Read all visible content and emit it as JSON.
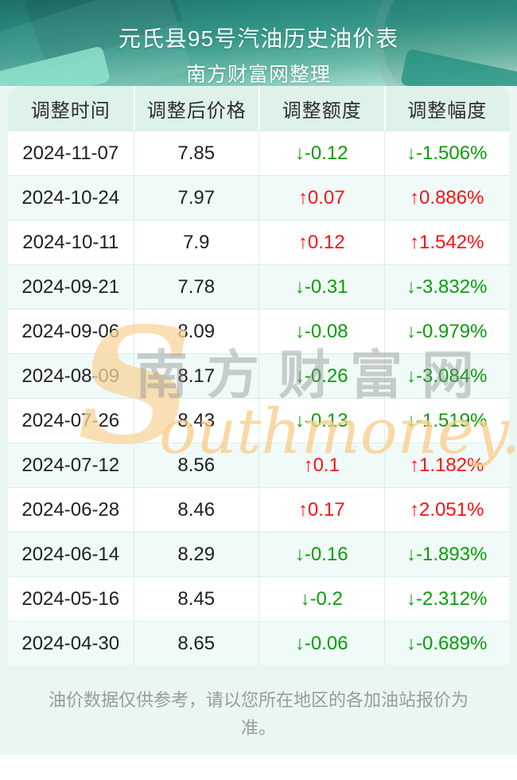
{
  "header": {
    "title": "元氏县95号汽油历史油价表",
    "subtitle": "南方财富网整理"
  },
  "table": {
    "columns": [
      "调整时间",
      "调整后价格",
      "调整额度",
      "调整幅度"
    ],
    "rows": [
      {
        "date": "2024-11-07",
        "price": "7.85",
        "change": "↓-0.12",
        "pct": "↓-1.506%",
        "dir": "down"
      },
      {
        "date": "2024-10-24",
        "price": "7.97",
        "change": "↑0.07",
        "pct": "↑0.886%",
        "dir": "up"
      },
      {
        "date": "2024-10-11",
        "price": "7.9",
        "change": "↑0.12",
        "pct": "↑1.542%",
        "dir": "up"
      },
      {
        "date": "2024-09-21",
        "price": "7.78",
        "change": "↓-0.31",
        "pct": "↓-3.832%",
        "dir": "down"
      },
      {
        "date": "2024-09-06",
        "price": "8.09",
        "change": "↓-0.08",
        "pct": "↓-0.979%",
        "dir": "down"
      },
      {
        "date": "2024-08-09",
        "price": "8.17",
        "change": "↓-0.26",
        "pct": "↓-3.084%",
        "dir": "down"
      },
      {
        "date": "2024-07-26",
        "price": "8.43",
        "change": "↓-0.13",
        "pct": "↓-1.519%",
        "dir": "down"
      },
      {
        "date": "2024-07-12",
        "price": "8.56",
        "change": "↑0.1",
        "pct": "↑1.182%",
        "dir": "up"
      },
      {
        "date": "2024-06-28",
        "price": "8.46",
        "change": "↑0.17",
        "pct": "↑2.051%",
        "dir": "up"
      },
      {
        "date": "2024-06-14",
        "price": "8.29",
        "change": "↓-0.16",
        "pct": "↓-1.893%",
        "dir": "down"
      },
      {
        "date": "2024-05-16",
        "price": "8.45",
        "change": "↓-0.2",
        "pct": "↓-2.312%",
        "dir": "down"
      },
      {
        "date": "2024-04-30",
        "price": "8.65",
        "change": "↓-0.06",
        "pct": "↓-0.689%",
        "dir": "down"
      }
    ]
  },
  "watermark": {
    "en_initial": "S",
    "cn": "南方财富网",
    "en_rest": "outhmoney.com"
  },
  "footer": {
    "disclaimer": "油价数据仅供参考，请以您所在地区的各加油站报价为准。"
  },
  "colors": {
    "up": "#fb1111",
    "down": "#089e08",
    "hero_top": "#1e6f65",
    "hero_bottom": "#c9ebe1",
    "page_bg": "#e9f6f2",
    "header_row_bg": "#def2ea",
    "alt_row_bg": "#f0faf8",
    "border": "#d8efe8"
  },
  "chart_data": {
    "type": "table",
    "title": "元氏县95号汽油历史油价表",
    "subtitle": "南方财富网整理",
    "columns": [
      "调整时间",
      "调整后价格",
      "调整额度",
      "调整幅度"
    ],
    "rows": [
      [
        "2024-11-07",
        7.85,
        -0.12,
        "-1.506%"
      ],
      [
        "2024-10-24",
        7.97,
        0.07,
        "0.886%"
      ],
      [
        "2024-10-11",
        7.9,
        0.12,
        "1.542%"
      ],
      [
        "2024-09-21",
        7.78,
        -0.31,
        "-3.832%"
      ],
      [
        "2024-09-06",
        8.09,
        -0.08,
        "-0.979%"
      ],
      [
        "2024-08-09",
        8.17,
        -0.26,
        "-3.084%"
      ],
      [
        "2024-07-26",
        8.43,
        -0.13,
        "-1.519%"
      ],
      [
        "2024-07-12",
        8.56,
        0.1,
        "1.182%"
      ],
      [
        "2024-06-28",
        8.46,
        0.17,
        "2.051%"
      ],
      [
        "2024-06-14",
        8.29,
        -0.16,
        "-1.893%"
      ],
      [
        "2024-05-16",
        8.45,
        -0.2,
        "-2.312%"
      ],
      [
        "2024-04-30",
        8.65,
        -0.06,
        "-0.689%"
      ]
    ]
  }
}
